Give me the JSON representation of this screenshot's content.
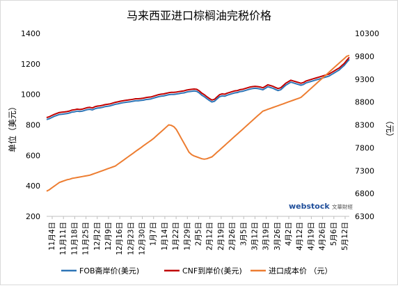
{
  "chart_data": {
    "type": "line",
    "title": "马来西亚进口棕榈油完税价格",
    "ylabel_left": "单位（美元）",
    "ylabel_right": "（元）",
    "y_left": {
      "min": 200,
      "max": 1400,
      "ticks": [
        200,
        400,
        600,
        800,
        1000,
        1200,
        1400
      ]
    },
    "y_right": {
      "min": 6300,
      "max": 10300,
      "ticks": [
        6300,
        6800,
        7300,
        7800,
        8300,
        8800,
        9300,
        9800,
        10300
      ]
    },
    "x_tick_labels": [
      "11月4日",
      "11月11日",
      "11月18日",
      "11月25日",
      "12月2日",
      "12月9日",
      "12月16日",
      "12月23日",
      "12月30日",
      "1月7日",
      "1月14日",
      "1月22日",
      "1月29日",
      "2月5日",
      "2月12日",
      "2月19日",
      "2月26日",
      "3月5日",
      "3月12日",
      "3月19日",
      "3月26日",
      "4月2日",
      "4月12日",
      "4月19日",
      "4月26日",
      "5月6日",
      "5月12日"
    ],
    "x_points": 120,
    "series": [
      {
        "name": "FOB斋岸价(美元)",
        "axis": "left",
        "color": "#2e75b6",
        "values": [
          835,
          840,
          848,
          856,
          862,
          868,
          870,
          872,
          874,
          878,
          884,
          886,
          890,
          888,
          890,
          895,
          900,
          902,
          898,
          906,
          910,
          912,
          915,
          920,
          922,
          925,
          930,
          935,
          938,
          942,
          945,
          948,
          950,
          952,
          955,
          958,
          958,
          960,
          962,
          966,
          968,
          970,
          975,
          980,
          985,
          988,
          990,
          994,
          998,
          1000,
          1000,
          1002,
          1005,
          1008,
          1010,
          1015,
          1018,
          1020,
          1022,
          1020,
          1010,
          995,
          985,
          972,
          960,
          950,
          955,
          970,
          985,
          990,
          988,
          995,
          1000,
          1005,
          1010,
          1012,
          1018,
          1020,
          1025,
          1030,
          1035,
          1038,
          1040,
          1038,
          1035,
          1030,
          1040,
          1050,
          1045,
          1040,
          1032,
          1025,
          1030,
          1045,
          1060,
          1070,
          1080,
          1075,
          1070,
          1065,
          1060,
          1065,
          1075,
          1080,
          1085,
          1090,
          1095,
          1100,
          1105,
          1110,
          1115,
          1120,
          1130,
          1140,
          1150,
          1160,
          1175,
          1190,
          1210,
          1230
        ]
      },
      {
        "name": "CNF到岸价(美元)",
        "axis": "left",
        "color": "#c00000",
        "values": [
          848,
          853,
          861,
          869,
          875,
          881,
          883,
          885,
          887,
          891,
          897,
          899,
          903,
          901,
          903,
          908,
          913,
          915,
          911,
          919,
          923,
          925,
          928,
          933,
          935,
          938,
          943,
          948,
          951,
          955,
          958,
          961,
          963,
          965,
          968,
          971,
          971,
          973,
          975,
          979,
          981,
          983,
          988,
          993,
          998,
          1001,
          1003,
          1007,
          1011,
          1013,
          1013,
          1015,
          1018,
          1021,
          1023,
          1028,
          1031,
          1033,
          1035,
          1033,
          1023,
          1008,
          998,
          985,
          973,
          963,
          968,
          983,
          998,
          1003,
          1001,
          1008,
          1013,
          1018,
          1023,
          1025,
          1031,
          1033,
          1038,
          1043,
          1048,
          1051,
          1053,
          1051,
          1048,
          1043,
          1053,
          1063,
          1058,
          1053,
          1045,
          1038,
          1043,
          1058,
          1073,
          1083,
          1093,
          1088,
          1083,
          1078,
          1073,
          1078,
          1088,
          1093,
          1098,
          1103,
          1108,
          1113,
          1118,
          1123,
          1128,
          1133,
          1143,
          1153,
          1163,
          1173,
          1188,
          1203,
          1223,
          1243
        ]
      },
      {
        "name": "进口成本价 （元）",
        "axis": "right",
        "color": "#ed7d31",
        "values": [
          6850,
          6880,
          6920,
          6960,
          7000,
          7040,
          7060,
          7080,
          7100,
          7110,
          7130,
          7140,
          7150,
          7160,
          7170,
          7180,
          7190,
          7200,
          7220,
          7240,
          7260,
          7280,
          7300,
          7320,
          7340,
          7360,
          7380,
          7400,
          7440,
          7480,
          7520,
          7560,
          7600,
          7640,
          7680,
          7720,
          7760,
          7800,
          7840,
          7880,
          7920,
          7960,
          8000,
          8050,
          8100,
          8150,
          8200,
          8250,
          8300,
          8290,
          8260,
          8200,
          8100,
          8000,
          7900,
          7800,
          7700,
          7650,
          7620,
          7600,
          7580,
          7560,
          7550,
          7560,
          7580,
          7600,
          7650,
          7700,
          7750,
          7800,
          7850,
          7900,
          7950,
          8000,
          8050,
          8100,
          8150,
          8200,
          8250,
          8300,
          8350,
          8400,
          8450,
          8500,
          8550,
          8600,
          8620,
          8640,
          8660,
          8680,
          8700,
          8720,
          8740,
          8760,
          8780,
          8800,
          8820,
          8840,
          8860,
          8880,
          8900,
          8950,
          9000,
          9050,
          9100,
          9150,
          9200,
          9250,
          9300,
          9350,
          9400,
          9450,
          9500,
          9550,
          9600,
          9650,
          9700,
          9750,
          9800,
          9820
        ]
      }
    ],
    "grid": false,
    "legend_position": "bottom",
    "watermark": {
      "brand": "webstock",
      "sub": "文華財經"
    }
  }
}
